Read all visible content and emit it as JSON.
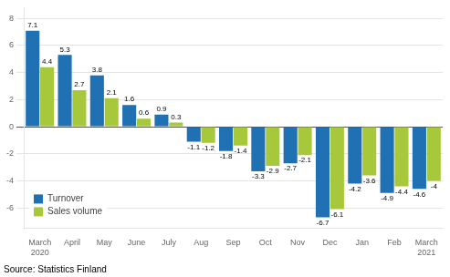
{
  "chart_data": {
    "type": "bar",
    "categories": [
      "March\n2020",
      "April",
      "May",
      "June",
      "July",
      "Aug",
      "Sep",
      "Oct",
      "Nov",
      "Dec",
      "Jan",
      "Feb",
      "March\n2021"
    ],
    "series": [
      {
        "name": "Turnover",
        "color": "#2070B4",
        "values": [
          7.1,
          5.3,
          3.8,
          1.6,
          0.9,
          -1.1,
          -1.8,
          -3.3,
          -2.7,
          -6.7,
          -4.2,
          -4.9,
          -4.6
        ]
      },
      {
        "name": "Sales volume",
        "color": "#A8C83C",
        "values": [
          4.4,
          2.7,
          2.1,
          0.6,
          0.3,
          -1.2,
          -1.4,
          -2.9,
          -2.1,
          -6.1,
          -3.6,
          -4.4,
          -4.0
        ]
      }
    ],
    "ylim": [
      -7.5,
      8.8
    ],
    "yticks": [
      -6,
      -4,
      -2,
      0,
      2,
      4,
      6,
      8
    ],
    "grid": true,
    "legend": "lower left",
    "data_labels": true,
    "annotations": [
      "Source: Statistics Finland"
    ]
  }
}
